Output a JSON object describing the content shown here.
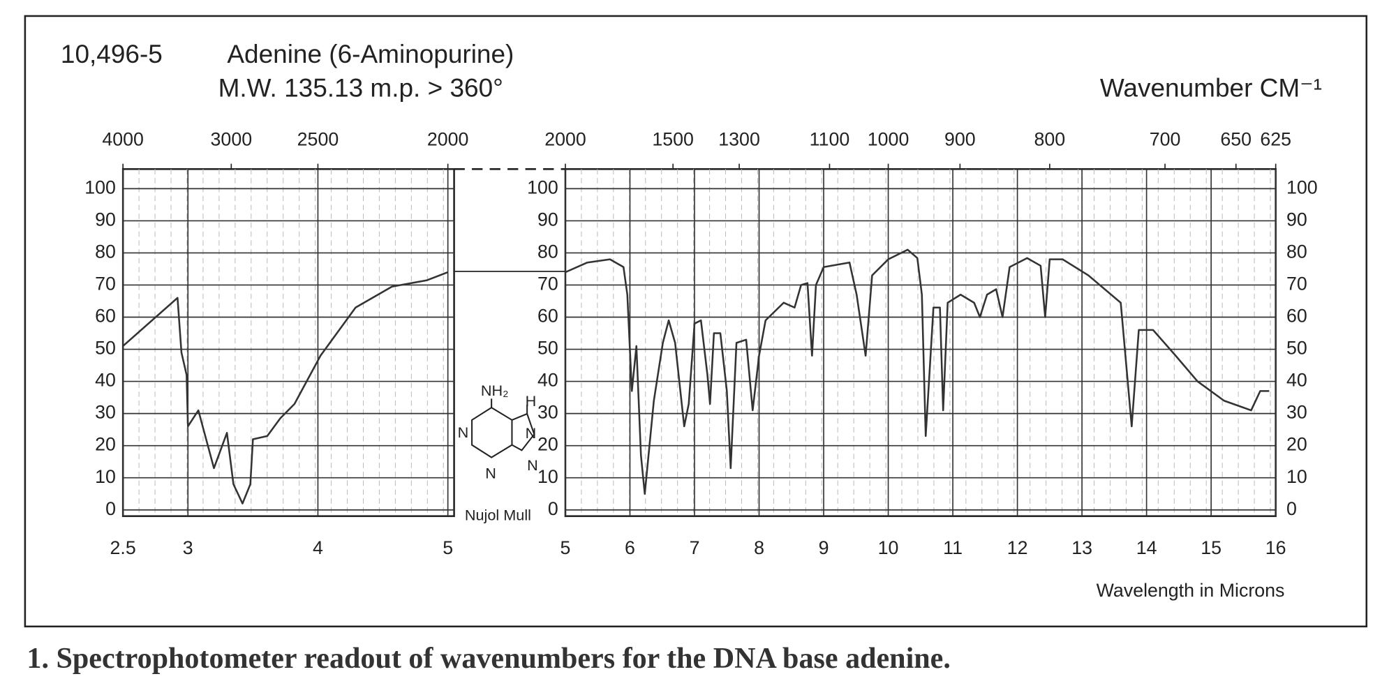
{
  "header": {
    "catalog_number": "10,496-5",
    "compound": "Adenine (6-Aminopurine)",
    "properties": "M.W. 135.13 m.p. > 360°"
  },
  "structure": {
    "amine": "NH₂",
    "hydrogen": "H",
    "nitrogen_labels": [
      "N",
      "N",
      "N",
      "N"
    ],
    "sample_note": "Nujol Mull"
  },
  "caption": "1. Spectrophotometer readout of wavenumbers for the DNA base adenine.",
  "chart_data": [
    {
      "type": "line",
      "color": "#333333",
      "x": [
        2.5,
        2.92,
        2.95,
        2.99,
        3.0,
        3.08,
        3.2,
        3.3,
        3.35,
        3.42,
        3.48,
        3.5,
        3.61,
        3.71,
        3.82,
        4.02,
        4.29,
        4.57,
        4.84,
        5.0
      ],
      "values": [
        51,
        66,
        49,
        42,
        26,
        31,
        13,
        24,
        8,
        2,
        8,
        22,
        23,
        28.5,
        33,
        48,
        63,
        69.5,
        71.5,
        74
      ],
      "xlim": [
        2.5,
        5
      ],
      "xticks": [
        2.5,
        3,
        4,
        5
      ],
      "top_ticks": [
        4000,
        3000,
        2500,
        2000
      ],
      "ylim": [
        0,
        100
      ],
      "yticks": [
        0,
        10,
        20,
        30,
        40,
        50,
        60,
        70,
        80,
        90,
        100
      ],
      "grid": true
    },
    {
      "type": "line",
      "color": "#333333",
      "top_label": "Wavenumber CM⁻¹",
      "xlabel": "Wavelength in Microns",
      "x": [
        5.0,
        5.34,
        5.69,
        5.9,
        5.96,
        6.03,
        6.1,
        6.17,
        6.23,
        6.37,
        6.51,
        6.6,
        6.7,
        6.84,
        6.91,
        7.0,
        7.1,
        7.2,
        7.24,
        7.3,
        7.4,
        7.5,
        7.56,
        7.65,
        7.8,
        7.9,
        8.0,
        8.1,
        8.38,
        8.55,
        8.65,
        8.75,
        8.82,
        8.88,
        9.0,
        9.4,
        9.51,
        9.65,
        9.75,
        10.0,
        10.3,
        10.45,
        10.52,
        10.58,
        10.7,
        10.8,
        10.85,
        10.92,
        11.12,
        11.33,
        11.42,
        11.53,
        11.67,
        11.77,
        11.88,
        12.15,
        12.36,
        12.43,
        12.5,
        12.7,
        13.1,
        13.6,
        13.7,
        13.77,
        13.88,
        14.1,
        14.45,
        14.79,
        15.2,
        15.62,
        15.76,
        15.9
      ],
      "values": [
        74,
        77,
        78,
        75.6,
        67,
        37,
        51,
        17,
        5,
        34,
        52,
        59,
        52,
        26,
        33,
        58,
        59,
        42,
        33,
        55,
        55,
        37,
        13,
        52,
        53,
        31,
        48,
        59,
        64.5,
        63,
        70,
        70.6,
        48,
        70,
        75.6,
        77,
        67,
        48,
        73,
        78,
        81,
        78.4,
        67,
        23,
        63,
        63,
        31,
        64.5,
        67,
        64.5,
        60,
        67,
        68.7,
        60,
        75.6,
        78.4,
        76,
        60,
        78,
        78,
        73,
        64.5,
        42,
        26,
        56,
        56,
        48,
        40,
        34,
        31,
        37,
        37
      ],
      "xlim": [
        5,
        16
      ],
      "xticks": [
        5,
        6,
        7,
        8,
        9,
        10,
        11,
        12,
        13,
        14,
        15,
        16
      ],
      "top_ticks": [
        2000,
        1500,
        1300,
        1100,
        1000,
        900,
        800,
        700,
        650,
        625
      ],
      "ylim": [
        0,
        100
      ],
      "yticks": [
        0,
        10,
        20,
        30,
        40,
        50,
        60,
        70,
        80,
        90,
        100
      ],
      "grid": true
    }
  ]
}
